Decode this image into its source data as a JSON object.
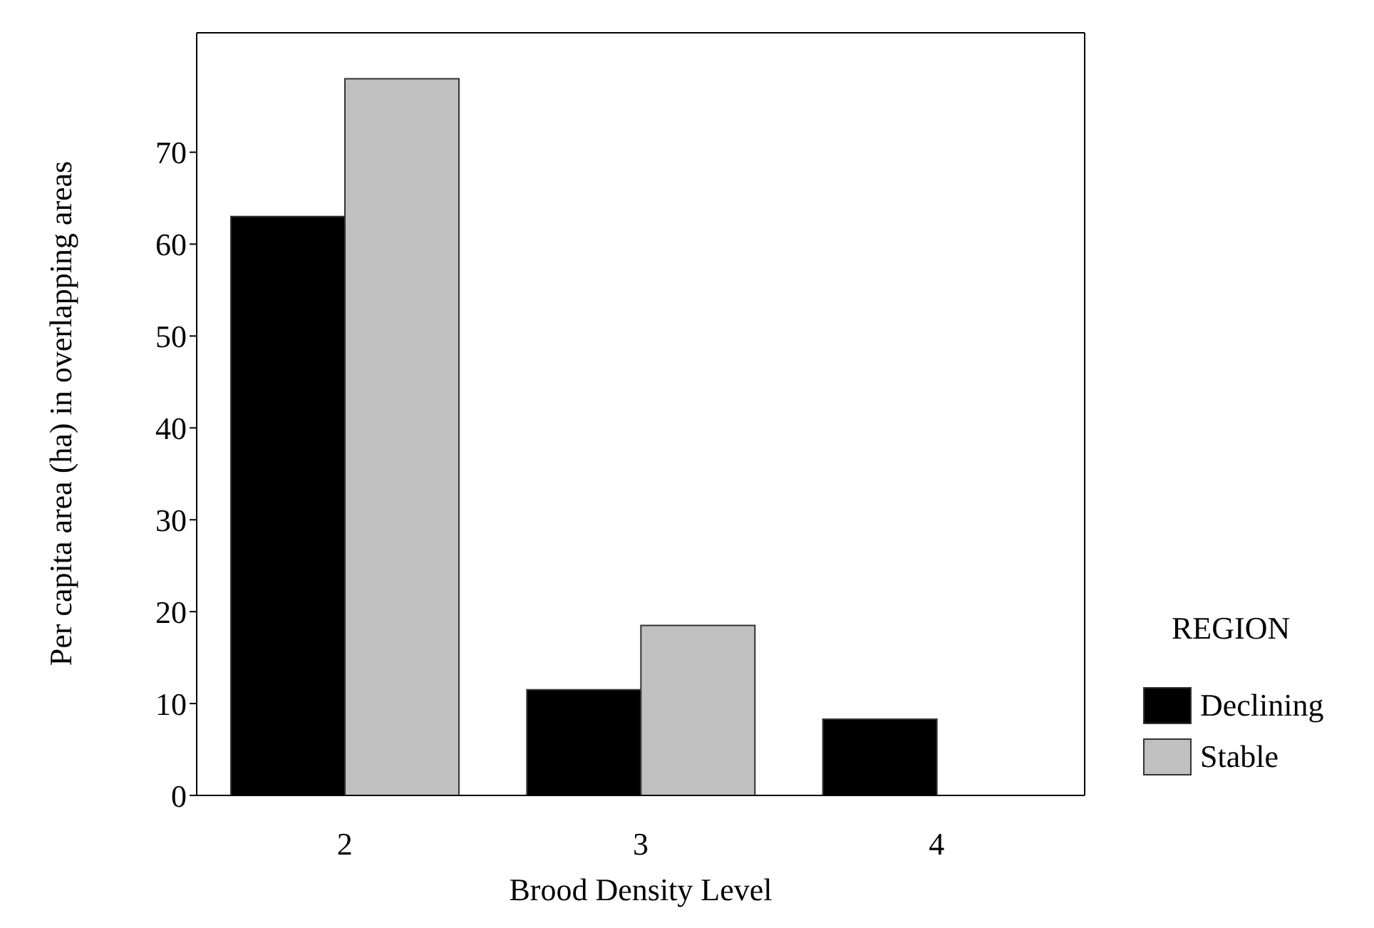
{
  "chart_data": {
    "type": "bar",
    "xlabel": "Brood Density Level",
    "ylabel": "Per capita area (ha) in overlapping areas",
    "legend_title": "REGION",
    "categories": [
      "2",
      "3",
      "4"
    ],
    "series": [
      {
        "name": "Declining",
        "color": "#000000",
        "values": [
          63,
          11.5,
          8.3
        ]
      },
      {
        "name": "Stable",
        "color": "#c0c0c0",
        "values": [
          78,
          18.5,
          null
        ]
      }
    ],
    "ylim": [
      0,
      83
    ],
    "yticks": [
      0,
      10,
      20,
      30,
      40,
      50,
      60,
      70
    ],
    "grid": false,
    "legend": "right"
  }
}
